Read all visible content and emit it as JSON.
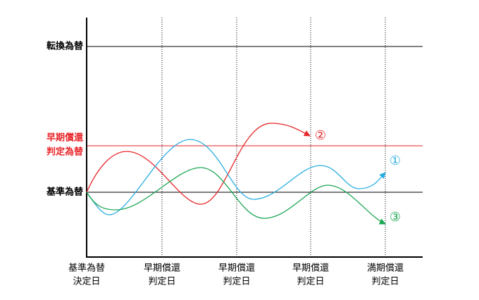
{
  "y_axis_labels": {
    "conversion_rate": "転換為替",
    "early_redemption_rate": [
      "早期償還",
      "判定為替"
    ],
    "base_rate": "基準為替"
  },
  "x_axis_labels": [
    [
      "基準為替",
      "決定日"
    ],
    [
      "早期償還",
      "判定日"
    ],
    [
      "早期償還",
      "判定日"
    ],
    [
      "早期償還",
      "判定日"
    ],
    [
      "満期償還",
      "判定日"
    ]
  ],
  "scenarios": [
    "①",
    "②",
    "③"
  ]
}
